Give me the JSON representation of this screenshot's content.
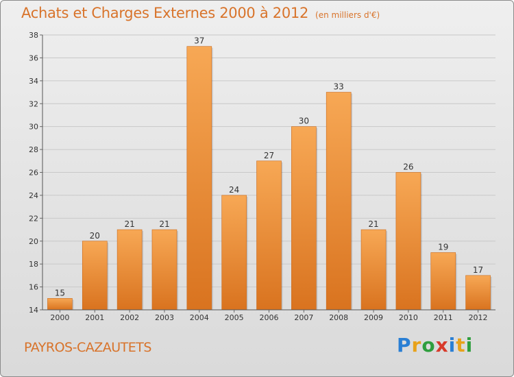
{
  "header": {
    "title": "Achats et Charges Externes 2000 à 2012",
    "unit": "(en milliers d'€)"
  },
  "footer": {
    "place": "PAYROS-CAZAUTETS",
    "brand": [
      "P",
      "r",
      "o",
      "x",
      "i",
      "t",
      "i"
    ],
    "brand_colors": [
      "#2a7fd4",
      "#e8a21b",
      "#2f9e3e",
      "#d83a2a",
      "#2a7fd4",
      "#e8a21b",
      "#2f9e3e"
    ]
  },
  "colors": {
    "bar_top": "#f7a855",
    "bar_bottom": "#d9731f",
    "title": "#d8732a"
  },
  "chart_data": {
    "type": "bar",
    "categories": [
      "2000",
      "2001",
      "2002",
      "2003",
      "2004",
      "2005",
      "2006",
      "2007",
      "2008",
      "2009",
      "2010",
      "2011",
      "2012"
    ],
    "values": [
      15,
      20,
      21,
      21,
      37,
      24,
      27,
      30,
      33,
      21,
      26,
      19,
      17
    ],
    "ylim": [
      14,
      38
    ],
    "yticks": [
      14,
      16,
      18,
      20,
      22,
      24,
      26,
      28,
      30,
      32,
      34,
      36,
      38
    ],
    "grid": true,
    "xlabel": "",
    "ylabel": ""
  }
}
